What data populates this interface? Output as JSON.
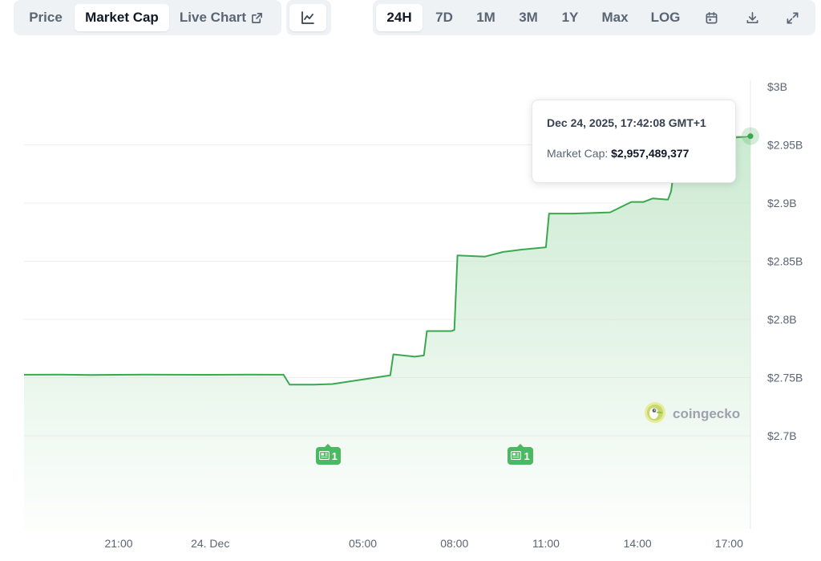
{
  "toolbar": {
    "tabs": [
      "Price",
      "Market Cap",
      "Live Chart"
    ],
    "active_tab": "Market Cap",
    "ranges": [
      "24H",
      "7D",
      "1M",
      "3M",
      "1Y",
      "Max",
      "LOG"
    ],
    "active_range": "24H",
    "icons": [
      "line-chart-icon",
      "external-link-icon",
      "calendar-icon",
      "download-icon",
      "expand-icon"
    ]
  },
  "tooltip": {
    "date": "Dec 24, 2025, 17:42:08 GMT+1",
    "label": "Market Cap:",
    "value": "$2,957,489,377"
  },
  "watermark": "coingecko",
  "news_badges": [
    {
      "count": "1",
      "x": 3.9
    },
    {
      "count": "1",
      "x": 10.2
    }
  ],
  "colors": {
    "line": "#3aa84f",
    "area_top": "#c9e9cf",
    "grid": "#eceef1",
    "axis_text": "#5a6573",
    "badge": "#4bb862"
  },
  "chart_data": {
    "type": "area",
    "title": "",
    "xlabel": "",
    "ylabel": "",
    "x_ticks": [
      {
        "label": "21:00",
        "value": -3
      },
      {
        "label": "24. Dec",
        "value": 0
      },
      {
        "label": "05:00",
        "value": 5
      },
      {
        "label": "08:00",
        "value": 8
      },
      {
        "label": "11:00",
        "value": 11
      },
      {
        "label": "14:00",
        "value": 14
      },
      {
        "label": "17:00",
        "value": 17
      }
    ],
    "y_ticks": [
      {
        "label": "$3B",
        "value": 3.0
      },
      {
        "label": "$2.95B",
        "value": 2.95
      },
      {
        "label": "$2.9B",
        "value": 2.9
      },
      {
        "label": "$2.85B",
        "value": 2.85
      },
      {
        "label": "$2.8B",
        "value": 2.8
      },
      {
        "label": "$2.75B",
        "value": 2.75
      },
      {
        "label": "$2.7B",
        "value": 2.7
      }
    ],
    "xlim": [
      -6.1,
      17.7
    ],
    "ylim": [
      2.64,
      3.0
    ],
    "grid": true,
    "series": [
      {
        "x": [
          -6.1,
          -4.9,
          -3.9,
          -2.2,
          -0.1,
          1.2,
          2.4,
          2.6,
          3.4,
          4.0,
          4.9,
          5.4,
          5.9,
          6.0,
          6.7,
          7.0,
          7.1,
          7.9,
          8.0,
          8.1,
          9.0,
          9.6,
          10.2,
          11.0,
          11.1,
          11.9,
          13.1,
          13.8,
          14.2,
          14.5,
          15.0,
          15.1,
          15.2,
          16.0,
          16.5,
          17.1,
          17.7
        ],
        "y": [
          2.7525,
          2.7526,
          2.7523,
          2.7526,
          2.7524,
          2.7526,
          2.7525,
          2.744,
          2.744,
          2.7445,
          2.748,
          2.75,
          2.752,
          2.77,
          2.768,
          2.769,
          2.79,
          2.79,
          2.791,
          2.855,
          2.854,
          2.858,
          2.86,
          2.862,
          2.891,
          2.891,
          2.892,
          2.901,
          2.901,
          2.904,
          2.903,
          2.91,
          2.93,
          2.945,
          2.952,
          2.956,
          2.9575
        ]
      }
    ]
  }
}
